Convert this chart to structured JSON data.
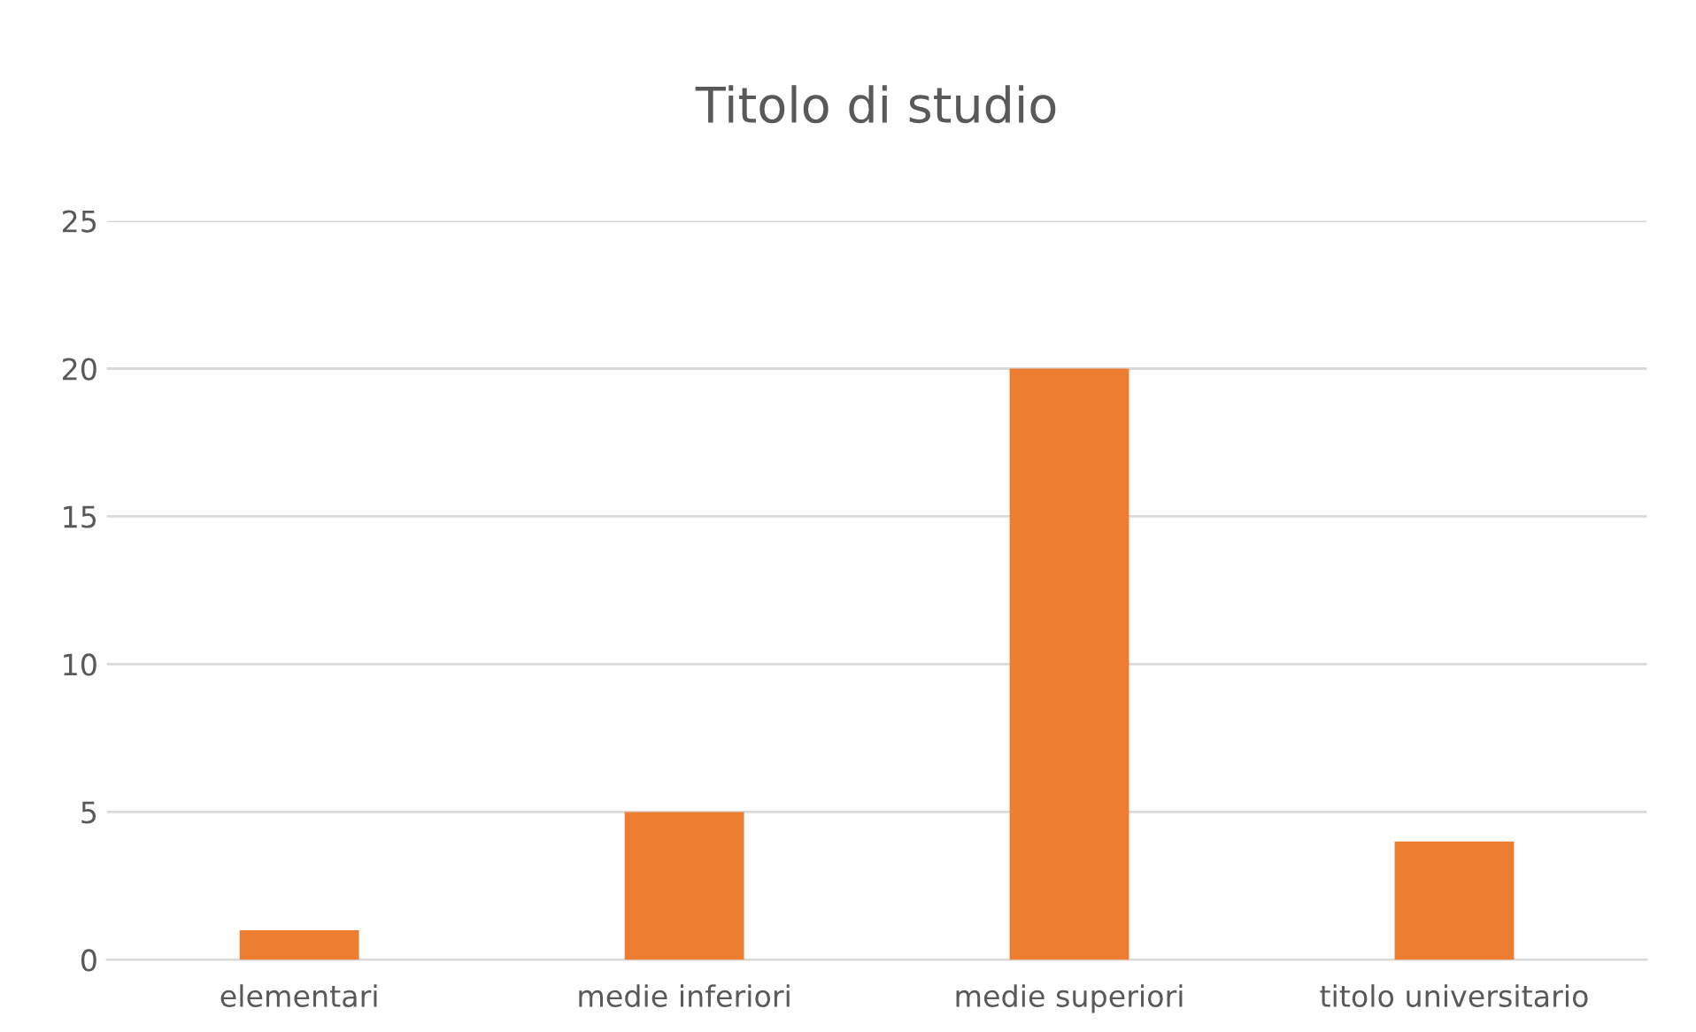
{
  "chart_data": {
    "type": "bar",
    "title": "Titolo di studio",
    "categories": [
      "elementari",
      "medie inferiori",
      "medie superiori",
      "titolo universitario"
    ],
    "values": [
      1,
      5,
      20,
      4
    ],
    "color": "#ed7d31",
    "ylim": [
      0,
      25
    ],
    "yticks": [
      0,
      5,
      10,
      15,
      20,
      25
    ],
    "grid": "y",
    "legend": false
  }
}
